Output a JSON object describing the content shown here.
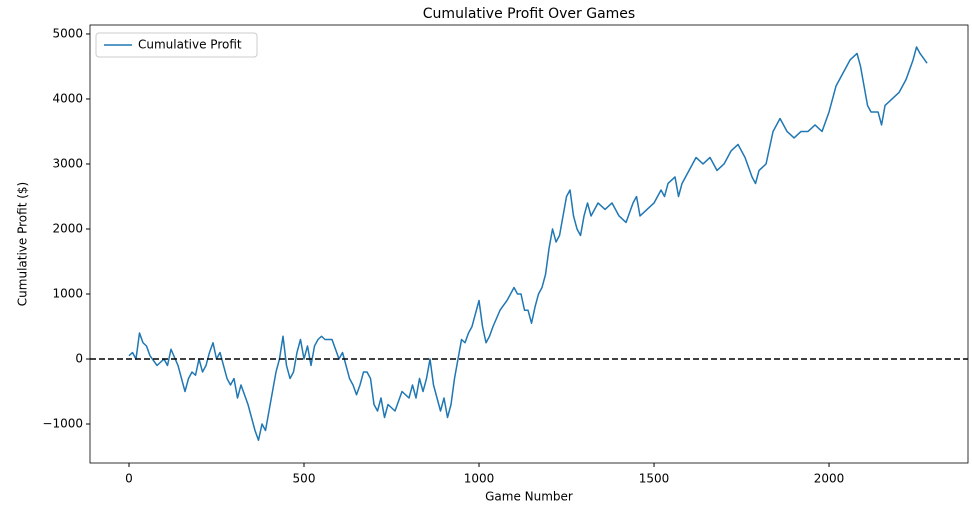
{
  "chart_data": {
    "type": "line",
    "title": "Cumulative Profit Over Games",
    "xlabel": "Game Number",
    "ylabel": "Cumulative Profit ($)",
    "x": [
      0,
      10,
      20,
      30,
      40,
      50,
      60,
      80,
      100,
      110,
      120,
      140,
      150,
      160,
      170,
      180,
      190,
      200,
      210,
      220,
      230,
      240,
      250,
      260,
      270,
      280,
      290,
      300,
      310,
      320,
      340,
      350,
      360,
      370,
      380,
      390,
      400,
      410,
      420,
      430,
      440,
      450,
      460,
      470,
      480,
      490,
      500,
      510,
      520,
      530,
      540,
      550,
      560,
      580,
      600,
      610,
      620,
      630,
      640,
      650,
      660,
      670,
      680,
      690,
      700,
      710,
      720,
      730,
      740,
      760,
      780,
      800,
      810,
      820,
      830,
      840,
      850,
      860,
      870,
      880,
      890,
      900,
      910,
      920,
      930,
      940,
      950,
      960,
      970,
      980,
      990,
      1000,
      1010,
      1020,
      1030,
      1040,
      1060,
      1080,
      1100,
      1110,
      1120,
      1130,
      1140,
      1150,
      1160,
      1170,
      1180,
      1190,
      1200,
      1210,
      1220,
      1230,
      1240,
      1250,
      1260,
      1270,
      1280,
      1290,
      1300,
      1310,
      1320,
      1340,
      1360,
      1380,
      1400,
      1420,
      1440,
      1450,
      1460,
      1480,
      1500,
      1520,
      1530,
      1540,
      1560,
      1570,
      1580,
      1600,
      1620,
      1640,
      1660,
      1680,
      1700,
      1720,
      1740,
      1760,
      1780,
      1790,
      1800,
      1820,
      1840,
      1860,
      1880,
      1900,
      1920,
      1940,
      1960,
      1980,
      2000,
      2020,
      2040,
      2060,
      2080,
      2090,
      2100,
      2110,
      2120,
      2140,
      2150,
      2160,
      2180,
      2200,
      2220,
      2240,
      2250,
      2260,
      2280
    ],
    "series": [
      {
        "name": "Cumulative Profit",
        "color": "#1f77b4",
        "values": [
          50,
          100,
          0,
          400,
          250,
          200,
          50,
          -100,
          0,
          -100,
          150,
          -100,
          -300,
          -500,
          -300,
          -200,
          -250,
          0,
          -200,
          -100,
          100,
          250,
          0,
          100,
          -100,
          -300,
          -400,
          -300,
          -600,
          -400,
          -700,
          -900,
          -1100,
          -1250,
          -1000,
          -1100,
          -800,
          -500,
          -200,
          0,
          350,
          -100,
          -300,
          -200,
          100,
          300,
          0,
          200,
          -100,
          200,
          300,
          350,
          300,
          300,
          0,
          100,
          -100,
          -300,
          -400,
          -550,
          -400,
          -200,
          -200,
          -300,
          -700,
          -800,
          -600,
          -900,
          -700,
          -800,
          -500,
          -600,
          -400,
          -600,
          -300,
          -500,
          -300,
          0,
          -400,
          -600,
          -800,
          -600,
          -900,
          -700,
          -300,
          0,
          300,
          250,
          400,
          500,
          700,
          900,
          500,
          250,
          350,
          500,
          750,
          900,
          1100,
          1000,
          1000,
          750,
          750,
          550,
          800,
          1000,
          1100,
          1300,
          1700,
          2000,
          1800,
          1900,
          2200,
          2500,
          2600,
          2200,
          2000,
          1900,
          2200,
          2400,
          2200,
          2400,
          2300,
          2400,
          2200,
          2100,
          2400,
          2500,
          2200,
          2300,
          2400,
          2600,
          2500,
          2700,
          2800,
          2500,
          2700,
          2900,
          3100,
          3000,
          3100,
          2900,
          3000,
          3200,
          3300,
          3100,
          2800,
          2700,
          2900,
          3000,
          3500,
          3700,
          3500,
          3400,
          3500,
          3500,
          3600,
          3500,
          3800,
          4200,
          4400,
          4600,
          4700,
          4500,
          4200,
          3900,
          3800,
          3800,
          3600,
          3900,
          4000,
          4100,
          4300,
          4600,
          4800,
          4700,
          4550
        ]
      }
    ],
    "hline": 0,
    "xlim": [
      -111.4,
      2397
    ],
    "ylim": [
      -1600,
      5138
    ],
    "xticks": [
      0,
      500,
      1000,
      1500,
      2000
    ],
    "yticks": [
      {
        "value": -1000,
        "label": "−1000"
      },
      0,
      1000,
      2000,
      3000,
      4000,
      5000
    ],
    "legend": "upper left"
  }
}
